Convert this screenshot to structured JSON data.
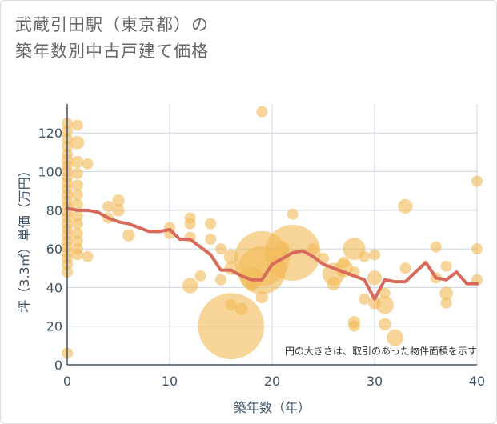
{
  "title_line1": "武蔵引田駅（東京都）の",
  "title_line2": "築年数別中古戸建て価格",
  "colors": {
    "bubble": "#f2b957",
    "line": "#d9695a",
    "grid": "#ccd6e0",
    "axis": "#3d5266",
    "text": "#666666"
  },
  "chart_data": {
    "type": "scatter",
    "xlabel": "築年数（年）",
    "ylabel": "坪（3.3㎡）単価（万円）",
    "xlim": [
      0,
      40
    ],
    "ylim": [
      0,
      135
    ],
    "xticks": [
      0,
      10,
      20,
      30,
      40
    ],
    "yticks": [
      0,
      20,
      40,
      60,
      80,
      100,
      120
    ],
    "grid": true,
    "note": "円の大きさは、取引のあった物件面積を示す",
    "scatter_points": [
      {
        "x": 0,
        "y": 125,
        "s": 1
      },
      {
        "x": 0,
        "y": 121,
        "s": 1
      },
      {
        "x": 0,
        "y": 117,
        "s": 1
      },
      {
        "x": 0,
        "y": 113,
        "s": 1
      },
      {
        "x": 0,
        "y": 109,
        "s": 1
      },
      {
        "x": 0,
        "y": 106,
        "s": 1
      },
      {
        "x": 0,
        "y": 103,
        "s": 1
      },
      {
        "x": 0,
        "y": 100,
        "s": 1
      },
      {
        "x": 0,
        "y": 97,
        "s": 1
      },
      {
        "x": 0,
        "y": 94,
        "s": 1
      },
      {
        "x": 0,
        "y": 91,
        "s": 1
      },
      {
        "x": 0,
        "y": 88,
        "s": 1
      },
      {
        "x": 0,
        "y": 85,
        "s": 1
      },
      {
        "x": 0,
        "y": 82,
        "s": 1
      },
      {
        "x": 0,
        "y": 79,
        "s": 1
      },
      {
        "x": 0,
        "y": 76,
        "s": 1
      },
      {
        "x": 0,
        "y": 73,
        "s": 1
      },
      {
        "x": 0,
        "y": 70,
        "s": 1
      },
      {
        "x": 0,
        "y": 67,
        "s": 1
      },
      {
        "x": 0,
        "y": 64,
        "s": 1
      },
      {
        "x": 0,
        "y": 61,
        "s": 1
      },
      {
        "x": 0,
        "y": 58,
        "s": 1
      },
      {
        "x": 0,
        "y": 55,
        "s": 1
      },
      {
        "x": 0,
        "y": 52,
        "s": 1
      },
      {
        "x": 0,
        "y": 48,
        "s": 1
      },
      {
        "x": 0,
        "y": 6,
        "s": 1
      },
      {
        "x": 1,
        "y": 124,
        "s": 1
      },
      {
        "x": 1,
        "y": 115,
        "s": 1.2
      },
      {
        "x": 1,
        "y": 105,
        "s": 1.1
      },
      {
        "x": 1,
        "y": 99,
        "s": 1
      },
      {
        "x": 1,
        "y": 93,
        "s": 1
      },
      {
        "x": 1,
        "y": 88,
        "s": 1
      },
      {
        "x": 1,
        "y": 83,
        "s": 1
      },
      {
        "x": 1,
        "y": 77,
        "s": 1
      },
      {
        "x": 1,
        "y": 73,
        "s": 1
      },
      {
        "x": 1,
        "y": 68,
        "s": 1
      },
      {
        "x": 1,
        "y": 64,
        "s": 1
      },
      {
        "x": 1,
        "y": 60,
        "s": 1
      },
      {
        "x": 1,
        "y": 57,
        "s": 1
      },
      {
        "x": 2,
        "y": 104,
        "s": 1
      },
      {
        "x": 2,
        "y": 56,
        "s": 1
      },
      {
        "x": 4,
        "y": 82,
        "s": 1
      },
      {
        "x": 4,
        "y": 76,
        "s": 1
      },
      {
        "x": 5,
        "y": 85,
        "s": 1.1
      },
      {
        "x": 5,
        "y": 80,
        "s": 1.1
      },
      {
        "x": 6,
        "y": 67,
        "s": 1.1
      },
      {
        "x": 10,
        "y": 71,
        "s": 1
      },
      {
        "x": 10,
        "y": 68,
        "s": 1
      },
      {
        "x": 12,
        "y": 76,
        "s": 1
      },
      {
        "x": 12,
        "y": 73,
        "s": 1
      },
      {
        "x": 12,
        "y": 66,
        "s": 1
      },
      {
        "x": 12,
        "y": 41,
        "s": 1.4
      },
      {
        "x": 13,
        "y": 46,
        "s": 1
      },
      {
        "x": 14,
        "y": 73,
        "s": 1
      },
      {
        "x": 14,
        "y": 65,
        "s": 1
      },
      {
        "x": 15,
        "y": 60,
        "s": 1
      },
      {
        "x": 15,
        "y": 44,
        "s": 1
      },
      {
        "x": 16,
        "y": 56,
        "s": 1.3
      },
      {
        "x": 16,
        "y": 50,
        "s": 1.2
      },
      {
        "x": 16,
        "y": 31,
        "s": 1
      },
      {
        "x": 16,
        "y": 20,
        "s": 5.9
      },
      {
        "x": 17,
        "y": 29,
        "s": 1.1
      },
      {
        "x": 18,
        "y": 45,
        "s": 2
      },
      {
        "x": 18,
        "y": 41,
        "s": 1
      },
      {
        "x": 19,
        "y": 131,
        "s": 1
      },
      {
        "x": 19,
        "y": 55,
        "s": 4.9
      },
      {
        "x": 19,
        "y": 35,
        "s": 1.1
      },
      {
        "x": 19,
        "y": 49,
        "s": 4.3
      },
      {
        "x": 21,
        "y": 60,
        "s": 1.3
      },
      {
        "x": 22,
        "y": 78,
        "s": 1
      },
      {
        "x": 22,
        "y": 58,
        "s": 5
      },
      {
        "x": 24,
        "y": 60,
        "s": 1
      },
      {
        "x": 25,
        "y": 55,
        "s": 1
      },
      {
        "x": 26,
        "y": 47,
        "s": 2
      },
      {
        "x": 26,
        "y": 42,
        "s": 1.2
      },
      {
        "x": 27,
        "y": 53,
        "s": 1
      },
      {
        "x": 27,
        "y": 50,
        "s": 1.6
      },
      {
        "x": 28,
        "y": 60,
        "s": 2
      },
      {
        "x": 28,
        "y": 48,
        "s": 1
      },
      {
        "x": 28,
        "y": 22,
        "s": 1.1
      },
      {
        "x": 28,
        "y": 20,
        "s": 1
      },
      {
        "x": 29,
        "y": 56,
        "s": 1
      },
      {
        "x": 29,
        "y": 34,
        "s": 1
      },
      {
        "x": 30,
        "y": 57,
        "s": 1
      },
      {
        "x": 30,
        "y": 45,
        "s": 1.3
      },
      {
        "x": 30,
        "y": 32,
        "s": 1.1
      },
      {
        "x": 31,
        "y": 37,
        "s": 1
      },
      {
        "x": 31,
        "y": 31,
        "s": 1.6
      },
      {
        "x": 31,
        "y": 21,
        "s": 1.1
      },
      {
        "x": 32,
        "y": 14,
        "s": 1.5
      },
      {
        "x": 33,
        "y": 82,
        "s": 1.3
      },
      {
        "x": 33,
        "y": 50,
        "s": 1
      },
      {
        "x": 36,
        "y": 61,
        "s": 1
      },
      {
        "x": 36,
        "y": 45,
        "s": 1
      },
      {
        "x": 37,
        "y": 51,
        "s": 1
      },
      {
        "x": 37,
        "y": 37,
        "s": 1.2
      },
      {
        "x": 37,
        "y": 32,
        "s": 1
      },
      {
        "x": 40,
        "y": 95,
        "s": 1
      },
      {
        "x": 40,
        "y": 60,
        "s": 1
      },
      {
        "x": 40,
        "y": 44,
        "s": 1
      }
    ],
    "series": [
      {
        "type": "line",
        "x": [
          0,
          1,
          2,
          3,
          4,
          5,
          6,
          7,
          8,
          9,
          10,
          11,
          12,
          13,
          14,
          15,
          16,
          17,
          18,
          19,
          20,
          21,
          22,
          23,
          24,
          25,
          26,
          27,
          28,
          29,
          30,
          31,
          32,
          33,
          34,
          35,
          36,
          37,
          38,
          39,
          40
        ],
        "y": [
          81,
          80,
          80,
          79,
          76,
          74,
          73,
          71,
          69,
          69,
          70,
          65,
          65,
          61,
          57,
          49,
          49,
          46,
          44,
          44,
          52,
          55,
          58,
          59,
          56,
          52,
          50,
          48,
          46,
          44,
          34,
          44,
          43,
          43,
          48,
          53,
          45,
          44,
          48,
          42,
          42
        ]
      }
    ]
  }
}
